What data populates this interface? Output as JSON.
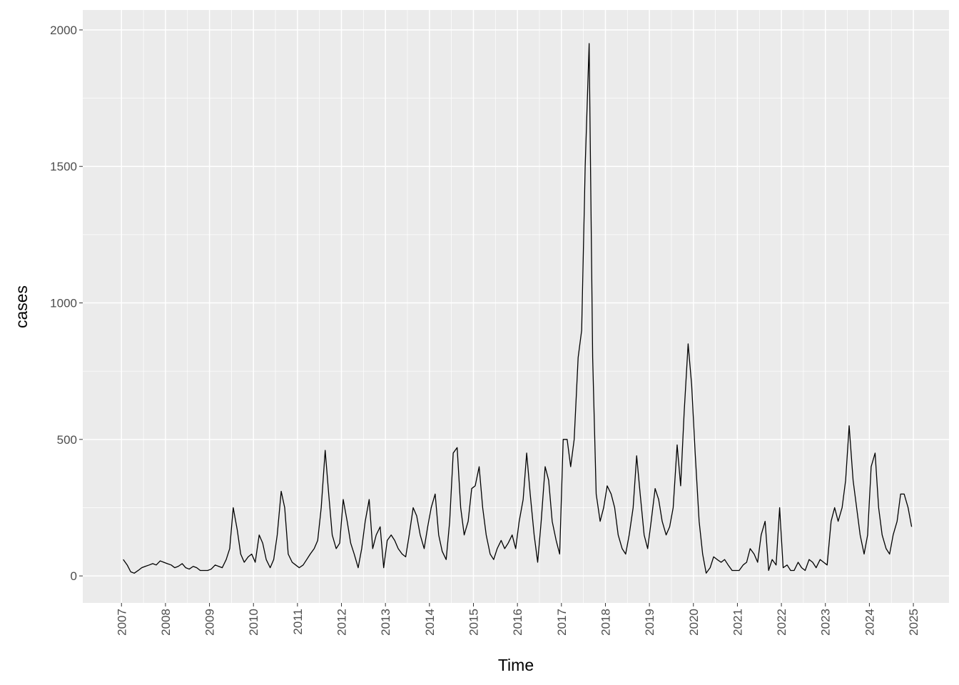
{
  "chart_data": {
    "type": "line",
    "xlabel": "Time",
    "ylabel": "cases",
    "color": "#000000",
    "grid": true,
    "xlim": [
      2006.12,
      2025.81
    ],
    "ylim": [
      -99,
      2073
    ],
    "xticks": [
      2007,
      2008,
      2009,
      2010,
      2011,
      2012,
      2013,
      2014,
      2015,
      2016,
      2017,
      2018,
      2019,
      2020,
      2021,
      2022,
      2023,
      2024,
      2025
    ],
    "yticks": [
      0,
      500,
      1000,
      1500,
      2000
    ],
    "x": [
      2007.04,
      2007.13,
      2007.21,
      2007.29,
      2007.38,
      2007.46,
      2007.54,
      2007.63,
      2007.71,
      2007.79,
      2007.88,
      2007.96,
      2008.04,
      2008.13,
      2008.21,
      2008.29,
      2008.38,
      2008.46,
      2008.54,
      2008.63,
      2008.71,
      2008.79,
      2008.88,
      2008.96,
      2009.04,
      2009.13,
      2009.21,
      2009.29,
      2009.38,
      2009.46,
      2009.54,
      2009.63,
      2009.71,
      2009.79,
      2009.88,
      2009.96,
      2010.04,
      2010.13,
      2010.21,
      2010.29,
      2010.38,
      2010.46,
      2010.54,
      2010.63,
      2010.71,
      2010.79,
      2010.88,
      2010.96,
      2011.04,
      2011.13,
      2011.21,
      2011.29,
      2011.38,
      2011.46,
      2011.54,
      2011.63,
      2011.71,
      2011.79,
      2011.88,
      2011.96,
      2012.04,
      2012.13,
      2012.21,
      2012.29,
      2012.38,
      2012.46,
      2012.54,
      2012.63,
      2012.71,
      2012.79,
      2012.88,
      2012.96,
      2013.04,
      2013.13,
      2013.21,
      2013.29,
      2013.38,
      2013.46,
      2013.54,
      2013.63,
      2013.71,
      2013.79,
      2013.88,
      2013.96,
      2014.04,
      2014.13,
      2014.21,
      2014.29,
      2014.38,
      2014.46,
      2014.54,
      2014.63,
      2014.71,
      2014.79,
      2014.88,
      2014.96,
      2015.04,
      2015.13,
      2015.21,
      2015.29,
      2015.38,
      2015.46,
      2015.54,
      2015.63,
      2015.71,
      2015.79,
      2015.88,
      2015.96,
      2016.04,
      2016.13,
      2016.21,
      2016.29,
      2016.38,
      2016.46,
      2016.54,
      2016.63,
      2016.71,
      2016.79,
      2016.88,
      2016.96,
      2017.04,
      2017.13,
      2017.21,
      2017.29,
      2017.38,
      2017.46,
      2017.54,
      2017.63,
      2017.71,
      2017.79,
      2017.88,
      2017.96,
      2018.04,
      2018.13,
      2018.21,
      2018.29,
      2018.38,
      2018.46,
      2018.54,
      2018.63,
      2018.71,
      2018.79,
      2018.88,
      2018.96,
      2019.04,
      2019.13,
      2019.21,
      2019.29,
      2019.38,
      2019.46,
      2019.54,
      2019.63,
      2019.71,
      2019.79,
      2019.88,
      2019.96,
      2020.04,
      2020.13,
      2020.21,
      2020.29,
      2020.38,
      2020.46,
      2020.54,
      2020.63,
      2020.71,
      2020.79,
      2020.88,
      2020.96,
      2021.04,
      2021.13,
      2021.21,
      2021.29,
      2021.38,
      2021.46,
      2021.54,
      2021.63,
      2021.71,
      2021.79,
      2021.88,
      2021.96,
      2022.04,
      2022.13,
      2022.21,
      2022.29,
      2022.38,
      2022.46,
      2022.54,
      2022.63,
      2022.71,
      2022.79,
      2022.88,
      2022.96,
      2023.04,
      2023.13,
      2023.21,
      2023.29,
      2023.38,
      2023.46,
      2023.54,
      2023.63,
      2023.71,
      2023.79,
      2023.88,
      2023.96,
      2024.04,
      2024.13,
      2024.21,
      2024.29,
      2024.38,
      2024.46,
      2024.54,
      2024.63,
      2024.71,
      2024.79,
      2024.88,
      2024.96
    ],
    "values": [
      60,
      40,
      15,
      10,
      20,
      30,
      35,
      40,
      45,
      40,
      55,
      50,
      45,
      40,
      30,
      35,
      45,
      30,
      25,
      35,
      30,
      20,
      20,
      20,
      25,
      40,
      35,
      30,
      60,
      100,
      250,
      170,
      80,
      50,
      70,
      80,
      50,
      150,
      120,
      60,
      30,
      60,
      150,
      310,
      250,
      80,
      50,
      40,
      30,
      40,
      60,
      80,
      100,
      130,
      250,
      460,
      300,
      150,
      100,
      120,
      280,
      200,
      120,
      80,
      30,
      100,
      200,
      280,
      100,
      150,
      180,
      30,
      130,
      150,
      130,
      100,
      80,
      70,
      150,
      250,
      220,
      150,
      100,
      180,
      250,
      300,
      150,
      90,
      60,
      200,
      450,
      470,
      250,
      150,
      200,
      320,
      330,
      400,
      250,
      150,
      80,
      60,
      100,
      130,
      100,
      120,
      150,
      100,
      200,
      280,
      450,
      300,
      150,
      50,
      200,
      400,
      350,
      200,
      130,
      80,
      500,
      500,
      400,
      500,
      800,
      900,
      1500,
      1950,
      800,
      300,
      200,
      250,
      330,
      300,
      250,
      150,
      100,
      80,
      150,
      250,
      440,
      300,
      150,
      100,
      200,
      320,
      280,
      200,
      150,
      180,
      250,
      480,
      330,
      600,
      850,
      700,
      450,
      200,
      80,
      10,
      30,
      70,
      60,
      50,
      60,
      40,
      20,
      20,
      20,
      40,
      50,
      100,
      80,
      50,
      150,
      200,
      20,
      60,
      40,
      250,
      30,
      40,
      20,
      20,
      50,
      30,
      20,
      60,
      50,
      30,
      60,
      50,
      40,
      200,
      250,
      200,
      250,
      350,
      550,
      350,
      250,
      150,
      80,
      150,
      400,
      450,
      250,
      150,
      100,
      80,
      150,
      200,
      300,
      300,
      250,
      180
    ]
  }
}
